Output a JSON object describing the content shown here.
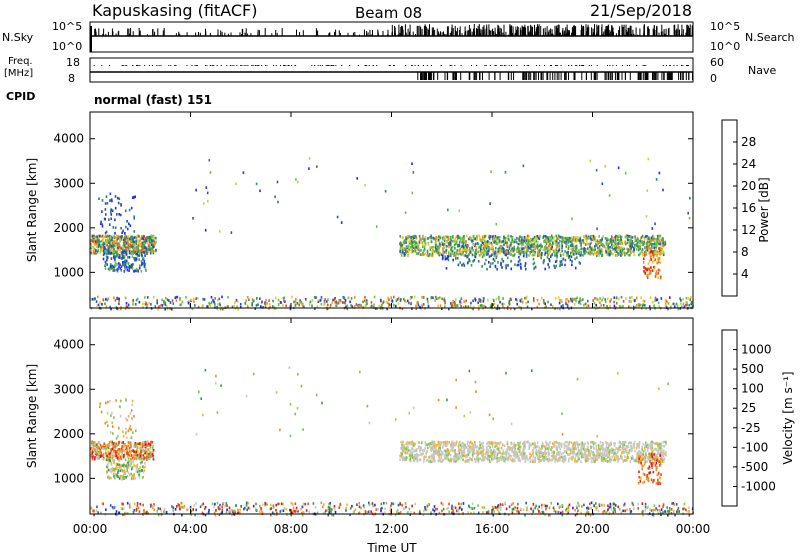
{
  "header": {
    "station": "Kapuskasing (fitACF)",
    "beam": "Beam 08",
    "date": "21/Sep/2018"
  },
  "top_panels": {
    "nsky_label": "N.Sky",
    "nsearch_label": "N.Search",
    "nsky_ticks": [
      "10^5",
      "10^0"
    ],
    "nsearch_ticks": [
      "10^5",
      "10^0"
    ],
    "freq_label": "Freq.",
    "freq_unit": "[MHz]",
    "freq_ticks": [
      "18",
      "8"
    ],
    "nave_label": "Nave",
    "nave_ticks": [
      "60",
      "0"
    ],
    "cpid_label": "CPID",
    "cpid_value": "normal (fast) 151"
  },
  "colors": {
    "power_scale": [
      "#1f2bff",
      "#2a4fb0",
      "#2f7a7a",
      "#3a9a55",
      "#6ac04a",
      "#c8d13c",
      "#f2c230",
      "#f08a24",
      "#e8521e",
      "#d8201a"
    ],
    "velocity_scale": [
      "#e01818",
      "#e8501a",
      "#f08a20",
      "#f4b030",
      "#c8c8c0",
      "#c8c8c0",
      "#7ac850",
      "#3a9a4a",
      "#2e5fa8",
      "#1a2ae0"
    ]
  },
  "chart_data": [
    {
      "type": "heatmap",
      "name": "power",
      "ylabel": "Slant Range [km]",
      "yticks": [
        "1000",
        "2000",
        "3000",
        "4000"
      ],
      "ylim": [
        200,
        4600
      ],
      "xlim": [
        "00:00",
        "24:00"
      ],
      "colorbar_label": "Power [dB]",
      "colorbar_ticks": [
        "4",
        "8",
        "12",
        "16",
        "20",
        "24",
        "28"
      ],
      "colorbar_range": [
        0,
        32
      ]
    },
    {
      "type": "heatmap",
      "name": "velocity",
      "ylabel": "Slant Range [km]",
      "yticks": [
        "1000",
        "2000",
        "3000",
        "4000"
      ],
      "ylim": [
        200,
        4600
      ],
      "xlim": [
        "00:00",
        "24:00"
      ],
      "colorbar_label": "Velocity [m s⁻¹]",
      "colorbar_ticks": [
        "1000",
        "500",
        "100",
        "25",
        "-25",
        "-100",
        "-500",
        "-1000"
      ],
      "xlabel": "Time UT",
      "xticks": [
        "00:00",
        "04:00",
        "08:00",
        "12:00",
        "16:00",
        "20:00",
        "00:00"
      ]
    }
  ]
}
